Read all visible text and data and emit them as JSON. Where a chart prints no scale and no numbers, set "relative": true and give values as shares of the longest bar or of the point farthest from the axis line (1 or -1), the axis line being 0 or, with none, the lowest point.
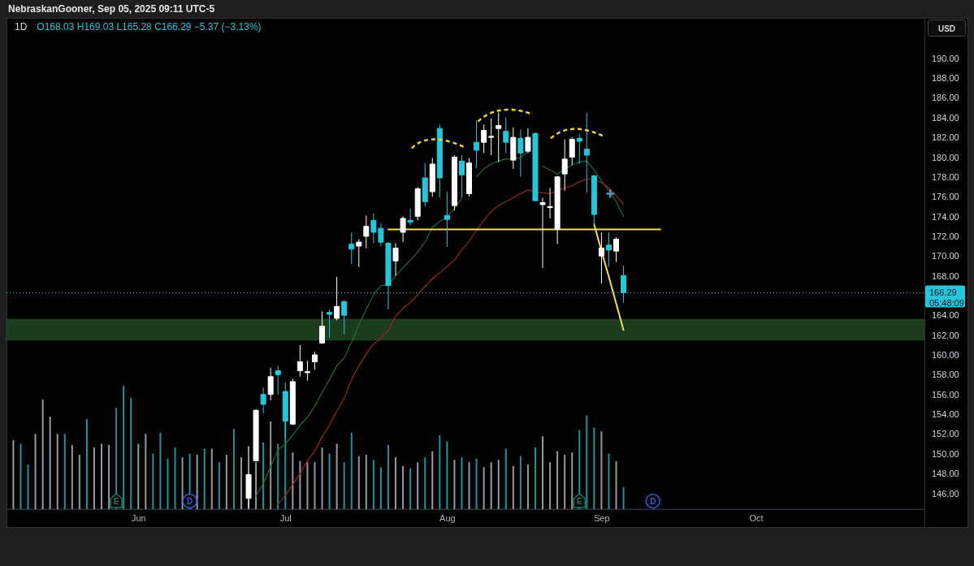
{
  "chart_data": [
    {
      "type": "candlestick",
      "title": "1D",
      "subtitle": "O168.03 H169.03 L165.28 C166.29 −5.37 (−3.13%)",
      "tick_labels": "y",
      "categories": [
        null,
        null,
        null,
        null,
        null,
        null,
        null,
        null,
        null,
        null,
        null,
        null,
        null,
        null,
        null,
        null,
        null,
        null,
        null,
        null,
        null,
        null,
        null,
        null,
        null,
        null,
        null,
        null,
        null,
        null,
        null,
        null,
        null,
        null,
        null,
        null,
        null,
        null,
        null,
        null,
        null,
        null,
        null,
        null,
        null,
        null,
        null,
        null,
        null,
        null,
        null,
        null,
        null,
        null,
        null,
        null,
        null,
        null,
        null,
        null,
        null,
        null,
        null,
        null,
        null,
        null,
        null,
        null,
        null,
        null,
        null,
        null,
        null,
        null,
        null,
        null,
        null,
        null,
        null,
        null,
        null,
        null,
        null,
        null,
        null,
        null,
        null,
        null,
        null,
        null,
        null,
        null,
        null,
        null,
        null,
        null,
        null,
        null,
        null,
        null,
        null,
        null,
        null,
        null,
        null,
        null,
        null,
        null,
        null,
        null,
        null,
        null,
        null,
        null,
        null,
        null,
        null,
        null,
        null,
        null,
        null,
        null,
        null,
        null
      ],
      "ohlc": [
        null,
        null,
        null,
        null,
        null,
        null,
        null,
        null,
        null,
        null,
        null,
        null,
        null,
        null,
        null,
        null,
        null,
        null,
        null,
        null,
        null,
        null,
        null,
        null,
        null,
        null,
        null,
        null,
        null,
        null,
        null,
        null,
        [
          145.5,
          148.0,
          144.5,
          147.9
        ],
        [
          149.3,
          154.5,
          149.2,
          154.4
        ],
        [
          156.0,
          156.7,
          154.1,
          155.0
        ],
        [
          156.0,
          158.7,
          155.4,
          157.8
        ],
        [
          158.4,
          158.9,
          156.0,
          158.0
        ],
        [
          156.3,
          157.2,
          151.5,
          153.3
        ],
        [
          153.0,
          157.6,
          152.9,
          157.3
        ],
        [
          158.4,
          161.0,
          157.8,
          159.3
        ],
        [
          158.2,
          159.4,
          157.4,
          158.3
        ],
        [
          159.3,
          160.3,
          158.5,
          160.0
        ],
        [
          161.2,
          164.4,
          161.2,
          162.9
        ],
        [
          164.3,
          164.6,
          161.7,
          164.1
        ],
        [
          163.7,
          167.9,
          163.5,
          164.9
        ],
        [
          165.4,
          165.5,
          162.1,
          164.0
        ],
        [
          171.2,
          172.4,
          169.2,
          170.7
        ],
        [
          171.0,
          171.7,
          168.9,
          171.4
        ],
        [
          172.0,
          174.1,
          170.8,
          173.0
        ],
        [
          173.6,
          174.3,
          171.3,
          172.4
        ],
        [
          172.8,
          173.3,
          171.0,
          171.4
        ],
        [
          171.3,
          171.4,
          164.6,
          167.0
        ],
        [
          169.5,
          171.3,
          168.0,
          170.8
        ],
        [
          172.4,
          174.0,
          171.4,
          173.8
        ],
        [
          173.6,
          174.8,
          173.1,
          173.4
        ],
        [
          174.0,
          177.0,
          173.6,
          176.8
        ],
        [
          177.9,
          179.4,
          175.0,
          175.5
        ],
        [
          176.5,
          179.9,
          176.0,
          179.3
        ],
        [
          182.9,
          183.3,
          175.9,
          177.9
        ],
        [
          174.1,
          176.5,
          170.9,
          173.7
        ],
        [
          175.1,
          180.2,
          174.6,
          180.0
        ],
        [
          179.6,
          180.2,
          175.9,
          178.2
        ],
        [
          176.3,
          179.9,
          176.0,
          179.4
        ],
        [
          181.5,
          183.7,
          178.9,
          180.7
        ],
        [
          181.5,
          183.3,
          180.4,
          182.7
        ],
        [
          182.0,
          183.9,
          180.2,
          182.1
        ],
        [
          182.9,
          184.5,
          179.5,
          183.2
        ],
        [
          182.6,
          184.0,
          180.4,
          181.5
        ],
        [
          179.7,
          183.0,
          178.8,
          182.0
        ],
        [
          181.9,
          182.8,
          178.0,
          180.4
        ],
        [
          180.6,
          182.9,
          180.4,
          182.0
        ],
        [
          182.4,
          182.5,
          175.5,
          175.6
        ],
        [
          175.2,
          175.9,
          168.8,
          175.4
        ],
        [
          174.9,
          176.9,
          173.8,
          175.0
        ],
        [
          172.7,
          178.1,
          171.2,
          178.0
        ],
        [
          178.3,
          181.8,
          176.6,
          179.8
        ],
        [
          180.0,
          182.0,
          179.2,
          181.8
        ],
        [
          181.9,
          182.3,
          179.3,
          181.6
        ],
        [
          180.8,
          184.5,
          176.4,
          180.2
        ],
        [
          178.1,
          178.2,
          173.1,
          174.2
        ],
        [
          170.0,
          172.4,
          167.2,
          170.8
        ],
        [
          171.1,
          172.4,
          168.9,
          170.6
        ],
        [
          170.5,
          171.9,
          169.4,
          171.7
        ],
        [
          168.03,
          169.03,
          165.28,
          166.29
        ],
        null,
        null,
        null,
        null,
        null,
        null,
        null,
        null,
        null,
        null,
        null,
        null,
        null,
        null,
        null,
        null,
        null,
        null,
        null,
        null,
        null,
        null,
        null,
        null,
        null,
        null,
        null,
        null,
        null,
        null,
        null,
        null,
        null,
        null,
        null,
        null,
        null,
        null,
        null,
        null
      ],
      "colors": [
        null,
        null,
        null,
        null,
        null,
        null,
        null,
        null,
        null,
        null,
        null,
        null,
        null,
        null,
        null,
        null,
        null,
        null,
        null,
        null,
        null,
        null,
        null,
        null,
        null,
        null,
        null,
        null,
        null,
        null,
        null,
        null,
        "#ffffff",
        "#ffffff",
        "#26c6da",
        "#ffffff",
        "#26c6da",
        "#26c6da",
        "#ffffff",
        "#ffffff",
        "#ffffff",
        "#ffffff",
        "#ffffff",
        "#26c6da",
        "#ffffff",
        "#26c6da",
        "#26c6da",
        "#ffffff",
        "#ffffff",
        "#26c6da",
        "#26c6da",
        "#26c6da",
        "#ffffff",
        "#ffffff",
        "#26c6da",
        "#ffffff",
        "#26c6da",
        "#ffffff",
        "#26c6da",
        "#26c6da",
        "#ffffff",
        "#26c6da",
        "#ffffff",
        "#26c6da",
        "#ffffff",
        "#ffffff",
        "#ffffff",
        "#26c6da",
        "#ffffff",
        "#26c6da",
        "#ffffff",
        "#26c6da",
        "#ffffff",
        "#ffffff",
        "#ffffff",
        "#ffffff",
        "#ffffff",
        "#26c6da",
        "#26c6da",
        "#26c6da",
        "#ffffff",
        "#26c6da",
        "#ffffff",
        "#26c6da",
        null,
        null,
        null,
        null,
        null,
        null,
        null,
        null,
        null,
        null,
        null,
        null,
        null,
        null,
        null,
        null,
        null,
        null,
        null,
        null,
        null,
        null,
        null,
        null,
        null,
        null,
        null,
        null,
        null,
        null,
        null,
        null,
        null,
        null,
        null,
        null,
        null,
        null,
        null,
        null
      ],
      "series": [
        {
          "type": "line",
          "color": "#2b6a30",
          "values": [
            null,
            null,
            null,
            null,
            null,
            null,
            null,
            null,
            null,
            null,
            null,
            null,
            null,
            null,
            null,
            null,
            null,
            null,
            null,
            null,
            null,
            null,
            null,
            null,
            null,
            null,
            null,
            null,
            null,
            null,
            null,
            null,
            null,
            145.7,
            147.0,
            148.7,
            150.4,
            151.0,
            151.9,
            152.9,
            153.7,
            154.8,
            156.2,
            157.5,
            158.9,
            159.7,
            161.3,
            163.0,
            164.6,
            166.1,
            167.0,
            167.1,
            168.0,
            168.8,
            169.6,
            170.4,
            171.4,
            172.9,
            173.5,
            174.0,
            174.8,
            175.8,
            null,
            178.0,
            178.8,
            179.3,
            179.6,
            179.8,
            179.8,
            180.0,
            180.5,
            null,
            179.1,
            178.7,
            178.3,
            178.8,
            179.2,
            179.5,
            179.6,
            178.7,
            177.6,
            176.6,
            175.5,
            174.0,
            null,
            null,
            null,
            null,
            null,
            null,
            null,
            null,
            null,
            null,
            null,
            null,
            null,
            null,
            null,
            null,
            null,
            null,
            null,
            null,
            null,
            null,
            null,
            null,
            null,
            null,
            null,
            null,
            null,
            null,
            null,
            null,
            null,
            null,
            null,
            null,
            null,
            null,
            null,
            null
          ]
        },
        {
          "type": "line",
          "color": "#9c2424",
          "values": [
            null,
            null,
            null,
            null,
            null,
            null,
            null,
            null,
            null,
            null,
            null,
            null,
            null,
            null,
            null,
            null,
            null,
            null,
            null,
            null,
            null,
            null,
            null,
            null,
            null,
            null,
            null,
            null,
            null,
            null,
            null,
            null,
            null,
            null,
            null,
            null,
            144.9,
            145.8,
            146.9,
            148.0,
            149.3,
            150.3,
            151.7,
            152.9,
            154.3,
            155.6,
            157.5,
            158.9,
            160.1,
            161.1,
            161.7,
            162.5,
            163.9,
            164.7,
            165.3,
            166.1,
            166.9,
            167.7,
            168.3,
            168.9,
            169.6,
            170.6,
            171.5,
            172.6,
            173.6,
            174.5,
            175.1,
            175.5,
            175.9,
            176.3,
            176.7,
            176.5,
            176.4,
            176.3,
            176.6,
            176.9,
            177.1,
            177.5,
            177.8,
            177.8,
            177.4,
            176.9,
            176.1,
            175.2,
            null,
            null,
            null,
            null,
            null,
            null,
            null,
            null,
            null,
            null,
            null,
            null,
            null,
            null,
            null,
            null,
            null,
            null,
            null,
            null,
            null,
            null,
            null,
            null,
            null,
            null,
            null,
            null,
            null,
            null,
            null,
            null,
            null,
            null,
            null,
            null,
            null,
            null,
            null,
            null
          ]
        },
        {
          "type": "line",
          "color": "#f2e14c",
          "values": [
            null,
            null,
            null,
            null,
            null,
            null,
            null,
            null,
            null,
            null,
            null,
            null,
            null,
            null,
            null,
            null,
            null,
            null,
            null,
            null,
            null,
            null,
            null,
            null,
            null,
            null,
            null,
            null,
            null,
            null,
            null,
            null,
            null,
            null,
            null,
            null,
            null,
            null,
            null,
            null,
            null,
            null,
            null,
            null,
            null,
            null,
            null,
            null,
            null,
            null,
            null,
            172.7,
            172.7,
            172.7,
            172.7,
            172.7,
            172.7,
            172.7,
            172.7,
            172.7,
            172.7,
            172.7,
            172.7,
            172.7,
            172.7,
            172.7,
            172.7,
            172.7,
            172.7,
            172.7,
            172.7,
            172.7,
            172.7,
            172.7,
            172.7,
            172.7,
            172.7,
            172.7,
            172.7,
            172.7,
            172.7,
            172.7,
            172.7,
            172.7,
            172.7,
            172.7,
            172.7,
            172.7,
            172.7,
            null,
            null,
            null,
            null,
            null,
            null,
            null,
            null,
            null,
            null,
            null,
            null,
            null,
            null,
            null,
            null,
            null,
            null,
            null,
            null,
            null,
            null,
            null,
            null,
            null,
            null,
            null,
            null,
            null,
            null,
            null,
            null,
            null,
            null,
            null
          ]
        },
        {
          "type": "line",
          "color": "#f2e14c",
          "values": [
            null,
            null,
            null,
            null,
            null,
            null,
            null,
            null,
            null,
            null,
            null,
            null,
            null,
            null,
            null,
            null,
            null,
            null,
            null,
            null,
            null,
            null,
            null,
            null,
            null,
            null,
            null,
            null,
            null,
            null,
            null,
            null,
            null,
            null,
            null,
            null,
            null,
            null,
            null,
            null,
            null,
            null,
            null,
            null,
            null,
            null,
            null,
            null,
            null,
            null,
            null,
            null,
            null,
            null,
            null,
            null,
            null,
            null,
            null,
            null,
            null,
            null,
            null,
            null,
            null,
            null,
            null,
            null,
            null,
            null,
            null,
            null,
            null,
            null,
            null,
            null,
            null,
            null,
            null,
            173.2,
            170.5,
            167.9,
            165.2,
            162.5,
            null,
            null,
            null,
            null,
            null,
            null,
            null,
            null,
            null,
            null,
            null,
            null,
            null,
            null,
            null,
            null,
            null,
            null,
            null,
            null,
            null,
            null,
            null,
            null,
            null,
            null,
            null,
            null,
            null,
            null,
            null,
            null,
            null,
            null,
            null,
            null,
            null,
            null,
            null,
            null
          ]
        }
      ],
      "ylim": [
        144.4,
        194.0
      ],
      "yticks": [
        {
          "value": 146,
          "label": "146.00"
        },
        {
          "value": 148,
          "label": "148.00"
        },
        {
          "value": 150,
          "label": "150.00"
        },
        {
          "value": 152,
          "label": "152.00"
        },
        {
          "value": 154,
          "label": "154.00"
        },
        {
          "value": 156,
          "label": "156.00"
        },
        {
          "value": 158,
          "label": "158.00"
        },
        {
          "value": 160,
          "label": "160.00"
        },
        {
          "value": 162,
          "label": "162.00"
        },
        {
          "value": 164,
          "label": "164.00"
        },
        {
          "value": 168,
          "label": "168.00"
        },
        {
          "value": 170,
          "label": "170.00"
        },
        {
          "value": 172,
          "label": "172.00"
        },
        {
          "value": 174,
          "label": "174.00"
        },
        {
          "value": 176,
          "label": "176.00"
        },
        {
          "value": 178,
          "label": "178.00"
        },
        {
          "value": 180,
          "label": "180.00"
        },
        {
          "value": 182,
          "label": "182.00"
        },
        {
          "value": 184,
          "label": "184.00"
        },
        {
          "value": 186,
          "label": "186.00"
        },
        {
          "value": 188,
          "label": "188.00"
        },
        {
          "value": 190,
          "label": "190.00"
        }
      ],
      "ref_lines": [
        {
          "axis": "y",
          "value": 166.29,
          "label": "166.29",
          "color": "#26c6da",
          "line_style": "dotted"
        }
      ],
      "bands": [
        {
          "axis": "y",
          "from": 161.5,
          "to": 163.6,
          "color": "#1b3d1e"
        }
      ],
      "annotations": [
        "NebraskanGooner, Sep 05, 2025 09:11 UTC-5",
        "USD",
        "05:48:09",
        "E",
        "E",
        "D",
        "D"
      ]
    },
    {
      "type": "bar",
      "relative": true,
      "tick_labels": "x",
      "categories": [
        null,
        null,
        null,
        null,
        null,
        null,
        null,
        null,
        null,
        null,
        null,
        null,
        null,
        null,
        null,
        null,
        null,
        "Jun",
        null,
        null,
        null,
        null,
        null,
        null,
        null,
        null,
        null,
        null,
        null,
        null,
        null,
        null,
        null,
        null,
        null,
        null,
        null,
        "Jul",
        null,
        null,
        null,
        null,
        null,
        null,
        null,
        null,
        null,
        null,
        null,
        null,
        null,
        null,
        null,
        null,
        null,
        null,
        null,
        null,
        null,
        "Aug",
        null,
        null,
        null,
        null,
        null,
        null,
        null,
        null,
        null,
        null,
        null,
        null,
        null,
        null,
        null,
        null,
        null,
        null,
        null,
        null,
        "Sep",
        null,
        null,
        null,
        null,
        null,
        null,
        null,
        null,
        null,
        null,
        null,
        null,
        null,
        null,
        null,
        null,
        null,
        null,
        null,
        null,
        "Oct",
        null,
        null,
        null,
        null,
        null,
        null,
        null,
        null,
        null,
        null,
        null,
        null,
        null,
        null,
        null,
        null,
        null,
        null,
        null,
        null,
        null,
        null
      ],
      "values": [
        0.56,
        0.53,
        0.36,
        0.61,
        0.89,
        0.75,
        0.61,
        0.61,
        0.52,
        0.44,
        0.73,
        0.5,
        0.53,
        0.52,
        0.82,
        1,
        0.9,
        0.53,
        0.61,
        0.45,
        0.62,
        0.41,
        0.5,
        0.42,
        0.45,
        0.44,
        0.49,
        0.49,
        0.38,
        0.44,
        0.65,
        0.42,
        0.51,
        0.38,
        0.54,
        0.71,
        0.53,
        0.74,
        0.46,
        0.39,
        0.38,
        0.38,
        0.5,
        0.45,
        0.53,
        0.38,
        0.62,
        0.43,
        0.44,
        0.4,
        0.34,
        0.52,
        0.42,
        0.35,
        0.33,
        0.38,
        0.42,
        0.47,
        0.6,
        0.55,
        0.4,
        0.42,
        0.38,
        0.41,
        0.34,
        0.38,
        0.4,
        0.49,
        0.35,
        0.43,
        0.36,
        0.5,
        0.59,
        0.38,
        0.47,
        0.44,
        0.46,
        0.64,
        0.76,
        0.66,
        0.63,
        0.45,
        0.39,
        0.18,
        null,
        null,
        null,
        null,
        null,
        null,
        null,
        null,
        null,
        null,
        null,
        null,
        null,
        null,
        null,
        null,
        null,
        null,
        null,
        null,
        null,
        null,
        null,
        null,
        null,
        null,
        null,
        null,
        null,
        null,
        null,
        null,
        null,
        null,
        null,
        null,
        null,
        null,
        null,
        null
      ],
      "colors": [
        "#9598a1",
        "#22909a",
        "#22909a",
        "#9598a1",
        "#9598a1",
        "#9598a1",
        "#9598a1",
        "#22909a",
        "#9598a1",
        "#9598a1",
        "#22909a",
        "#9598a1",
        "#9598a1",
        "#9598a1",
        "#22909a",
        "#22909a",
        "#22909a",
        "#9598a1",
        "#9598a1",
        "#22909a",
        "#22909a",
        "#22909a",
        "#22909a",
        "#9598a1",
        "#22909a",
        "#9598a1",
        "#22909a",
        "#9598a1",
        "#22909a",
        "#9598a1",
        "#22909a",
        "#9598a1",
        "#9598a1",
        "#9598a1",
        "#22909a",
        "#9598a1",
        "#22909a",
        "#22909a",
        "#9598a1",
        "#9598a1",
        "#9598a1",
        "#9598a1",
        "#9598a1",
        "#22909a",
        "#9598a1",
        "#22909a",
        "#22909a",
        "#9598a1",
        "#9598a1",
        "#22909a",
        "#22909a",
        "#22909a",
        "#9598a1",
        "#9598a1",
        "#22909a",
        "#9598a1",
        "#22909a",
        "#9598a1",
        "#22909a",
        "#22909a",
        "#9598a1",
        "#22909a",
        "#9598a1",
        "#22909a",
        "#9598a1",
        "#9598a1",
        "#9598a1",
        "#22909a",
        "#9598a1",
        "#22909a",
        "#9598a1",
        "#22909a",
        "#9598a1",
        "#9598a1",
        "#9598a1",
        "#9598a1",
        "#9598a1",
        "#22909a",
        "#22909a",
        "#22909a",
        "#9598a1",
        "#22909a",
        "#9598a1",
        "#22909a",
        null,
        null,
        null,
        null,
        null,
        null,
        null,
        null,
        null,
        null,
        null,
        null,
        null,
        null,
        null,
        null,
        null,
        null,
        null,
        null,
        null,
        null,
        null,
        null,
        null,
        null,
        null,
        null,
        null,
        null,
        null,
        null,
        null,
        null,
        null,
        null,
        null,
        null,
        null,
        null
      ]
    }
  ]
}
